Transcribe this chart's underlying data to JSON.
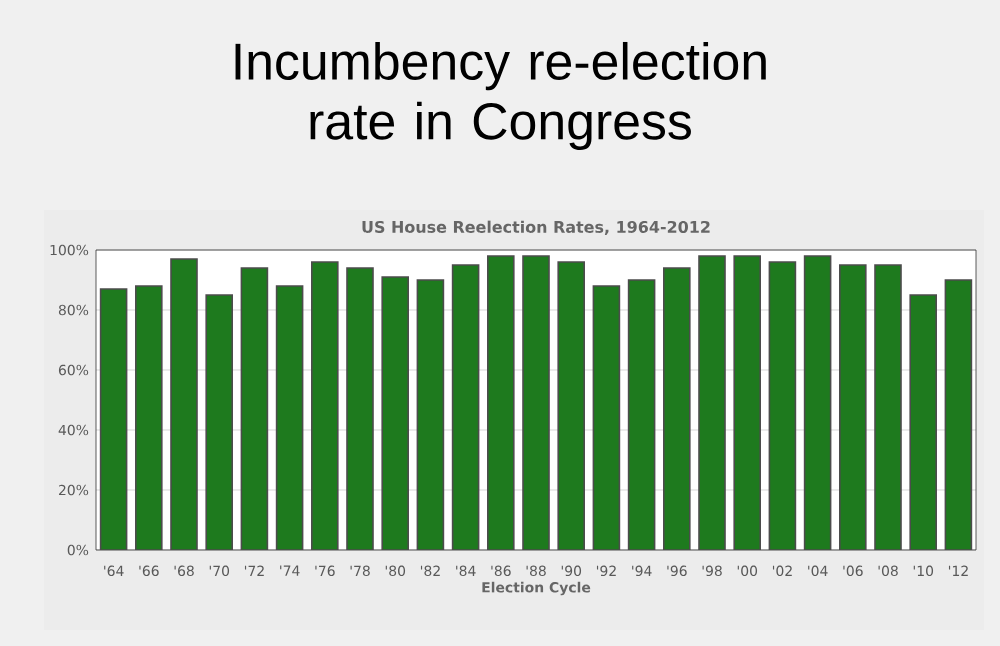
{
  "chart_data": {
    "type": "bar",
    "title": "Incumbency re-election rate in Congress",
    "subtitle": "US House Reelection Rates, 1964-2012",
    "xlabel": "Election Cycle",
    "categories": [
      "'64",
      "'66",
      "'68",
      "'70",
      "'72",
      "'74",
      "'76",
      "'78",
      "'80",
      "'82",
      "'84",
      "'86",
      "'88",
      "'90",
      "'92",
      "'94",
      "'96",
      "'98",
      "'00",
      "'02",
      "'04",
      "'06",
      "'08",
      "'10",
      "'12"
    ],
    "values": [
      87,
      88,
      97,
      85,
      94,
      88,
      96,
      94,
      91,
      90,
      95,
      98,
      98,
      96,
      88,
      90,
      94,
      98,
      98,
      96,
      98,
      95,
      95,
      85,
      90
    ],
    "color": "#1e7a1e",
    "ylim": [
      0,
      100
    ],
    "yticks": [
      {
        "value": 0,
        "label": "0%"
      },
      {
        "value": 20,
        "label": "20%"
      },
      {
        "value": 40,
        "label": "40%"
      },
      {
        "value": 60,
        "label": "60%"
      },
      {
        "value": 80,
        "label": "80%"
      },
      {
        "value": 100,
        "label": "100%"
      }
    ],
    "grid": "y"
  }
}
